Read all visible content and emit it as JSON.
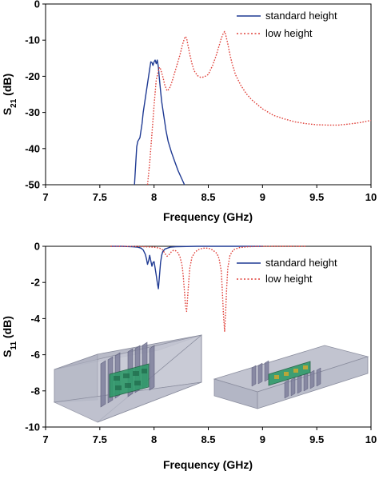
{
  "chart_data": [
    {
      "type": "line",
      "xlabel": "Frequency (GHz)",
      "ylabel": {
        "main": "S",
        "sub": "21",
        "unit": " (dB)"
      },
      "xlim": [
        7,
        10
      ],
      "ylim": [
        -50,
        0
      ],
      "xticks": [
        "7",
        "7.5",
        "8",
        "8.5",
        "9",
        "9.5",
        "10"
      ],
      "yticks": [
        "0",
        "-10",
        "-20",
        "-30",
        "-40",
        "-50"
      ],
      "legend_position": "top-right",
      "grid": false,
      "series": [
        {
          "name": "standard height",
          "color": "#1f3a93",
          "style": "solid",
          "x": [
            7.82,
            7.84,
            7.85,
            7.87,
            7.89,
            7.9,
            7.92,
            7.94,
            7.96,
            7.97,
            7.98,
            7.99,
            8.0,
            8.01,
            8.02,
            8.03,
            8.04,
            8.05,
            8.06,
            8.07,
            8.09,
            8.11,
            8.13,
            8.16,
            8.19,
            8.22,
            8.25,
            8.28
          ],
          "y": [
            -50,
            -39.5,
            -38,
            -37,
            -33,
            -30,
            -26,
            -22,
            -18,
            -16,
            -16.2,
            -17,
            -16,
            -15.5,
            -16.5,
            -15.5,
            -17.5,
            -21,
            -24,
            -27,
            -31,
            -35,
            -38,
            -41,
            -43.5,
            -46,
            -48,
            -50
          ]
        },
        {
          "name": "low height",
          "color": "#e0413a",
          "style": "dotted",
          "x": [
            7.94,
            7.96,
            7.98,
            8.0,
            8.02,
            8.04,
            8.05,
            8.06,
            8.08,
            8.1,
            8.12,
            8.14,
            8.16,
            8.18,
            8.2,
            8.22,
            8.24,
            8.26,
            8.28,
            8.29,
            8.3,
            8.31,
            8.33,
            8.35,
            8.37,
            8.4,
            8.43,
            8.46,
            8.5,
            8.54,
            8.57,
            8.6,
            8.62,
            8.64,
            8.65,
            8.66,
            8.68,
            8.7,
            8.72,
            8.75,
            8.8,
            8.85,
            8.9,
            9.0,
            9.1,
            9.2,
            9.3,
            9.4,
            9.5,
            9.6,
            9.7,
            9.8,
            9.9,
            10.0
          ],
          "y": [
            -50,
            -44,
            -36,
            -28,
            -21,
            -18.5,
            -17.5,
            -18,
            -20,
            -22.5,
            -24,
            -23.5,
            -22,
            -20,
            -18,
            -16,
            -14,
            -11.5,
            -9.5,
            -9,
            -9.5,
            -11,
            -14,
            -16.5,
            -18.5,
            -19.8,
            -20.3,
            -20.2,
            -19.5,
            -17,
            -14.5,
            -11.5,
            -9.5,
            -8,
            -7.6,
            -8.5,
            -11,
            -14,
            -16.5,
            -19.5,
            -22.5,
            -24.8,
            -26.5,
            -29,
            -30.8,
            -31.8,
            -32.6,
            -33.1,
            -33.4,
            -33.5,
            -33.5,
            -33.2,
            -32.8,
            -32.2
          ]
        }
      ]
    },
    {
      "type": "line",
      "xlabel": "Frequency (GHz)",
      "ylabel": {
        "main": "S",
        "sub": "11",
        "unit": " (dB)"
      },
      "xlim": [
        7,
        10
      ],
      "ylim": [
        -10,
        0
      ],
      "xticks": [
        "7",
        "7.5",
        "8",
        "8.5",
        "9",
        "9.5",
        "10"
      ],
      "yticks": [
        "0",
        "-2",
        "-4",
        "-6",
        "-8",
        "-10"
      ],
      "legend_position": "top-right",
      "grid": false,
      "series": [
        {
          "name": "standard height",
          "color": "#1f3a93",
          "style": "solid",
          "x": [
            7.6,
            7.7,
            7.8,
            7.85,
            7.88,
            7.9,
            7.92,
            7.93,
            7.94,
            7.95,
            7.96,
            7.97,
            7.98,
            7.99,
            8.0,
            8.01,
            8.02,
            8.03,
            8.04,
            8.05,
            8.06,
            8.07,
            8.08,
            8.1,
            8.15,
            8.2,
            8.4,
            9.0
          ],
          "y": [
            0,
            0,
            -0.02,
            -0.05,
            -0.1,
            -0.2,
            -0.45,
            -0.7,
            -1.0,
            -0.8,
            -0.5,
            -0.8,
            -1.1,
            -0.9,
            -0.85,
            -1.2,
            -1.6,
            -2.0,
            -2.35,
            -1.6,
            -0.9,
            -0.5,
            -0.3,
            -0.15,
            -0.05,
            -0.02,
            0,
            0
          ]
        },
        {
          "name": "low height",
          "color": "#e0413a",
          "style": "dotted",
          "x": [
            7.6,
            7.8,
            7.9,
            8.0,
            8.05,
            8.08,
            8.1,
            8.12,
            8.14,
            8.16,
            8.18,
            8.2,
            8.22,
            8.24,
            8.26,
            8.27,
            8.28,
            8.29,
            8.3,
            8.31,
            8.32,
            8.33,
            8.35,
            8.38,
            8.42,
            8.46,
            8.5,
            8.54,
            8.58,
            8.6,
            8.62,
            8.63,
            8.64,
            8.65,
            8.66,
            8.67,
            8.68,
            8.7,
            8.73,
            8.78,
            8.85,
            8.95,
            9.1,
            9.4
          ],
          "y": [
            0,
            -0.01,
            -0.02,
            -0.05,
            -0.1,
            -0.2,
            -0.4,
            -0.55,
            -0.45,
            -0.3,
            -0.22,
            -0.25,
            -0.35,
            -0.6,
            -1.1,
            -1.7,
            -2.5,
            -3.3,
            -3.6,
            -2.8,
            -1.9,
            -1.2,
            -0.6,
            -0.3,
            -0.15,
            -0.1,
            -0.1,
            -0.2,
            -0.4,
            -0.7,
            -1.4,
            -2.5,
            -3.8,
            -4.7,
            -3.6,
            -2.2,
            -1.2,
            -0.5,
            -0.2,
            -0.08,
            -0.03,
            -0.01,
            0,
            0
          ]
        }
      ]
    }
  ]
}
